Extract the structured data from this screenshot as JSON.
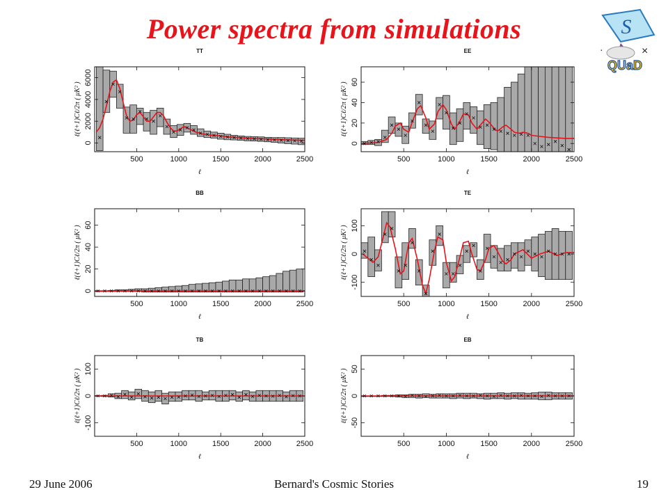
{
  "slide": {
    "title": "Power spectra from simulations",
    "footer_date": "29 June 2006",
    "footer_center": "Bernard's Cosmic Stories",
    "page_number": "19"
  },
  "logo": {
    "text": "QUaD",
    "glyph": "S",
    "symbol_left": "·",
    "symbol_right": "×"
  },
  "colors": {
    "title": "#e8141b",
    "model_curve": "#e8141b",
    "error_box": "#a9a9a9",
    "box_edge": "#222222"
  },
  "chart_data": [
    {
      "type": "line",
      "title": "TT",
      "xlabel": "ℓ",
      "ylabel": "ℓ(ℓ+1)Cℓ/2π ( μK² )",
      "xlim": [
        0,
        2500
      ],
      "ylim": [
        -800,
        7000
      ],
      "xticks": [
        500,
        1000,
        1500,
        2000,
        2500
      ],
      "yticks": [
        0,
        2000,
        4000,
        6000
      ],
      "series": [
        {
          "x": [
            20,
            60,
            100,
            140,
            180,
            220,
            260,
            300,
            340,
            380,
            420,
            460,
            500,
            540,
            580,
            620,
            660,
            700,
            740,
            780,
            820,
            860,
            900,
            940,
            980,
            1020,
            1060,
            1100,
            1150,
            1200,
            1300,
            1400,
            1500,
            1600,
            1700,
            1800,
            1900,
            2000,
            2100,
            2200,
            2300,
            2400,
            2500
          ],
          "y": [
            1000,
            1400,
            2200,
            3400,
            4700,
            5600,
            5800,
            5000,
            3700,
            2500,
            2000,
            2100,
            2600,
            2800,
            2400,
            2000,
            2000,
            2400,
            2800,
            2800,
            2500,
            1900,
            1400,
            1100,
            1100,
            1300,
            1500,
            1400,
            1200,
            1000,
            800,
            700,
            650,
            550,
            500,
            450,
            400,
            380,
            340,
            310,
            280,
            260,
            240
          ]
        }
      ],
      "points": {
        "x": [
          60,
          140,
          220,
          300,
          380,
          460,
          540,
          620,
          700,
          780,
          860,
          940,
          1020,
          1100,
          1180,
          1260,
          1340,
          1420,
          1500,
          1580,
          1660,
          1740,
          1820,
          1900,
          1980,
          2060,
          2140,
          2220,
          2300,
          2380,
          2460
        ],
        "y": [
          500,
          3800,
          5400,
          4700,
          2300,
          2200,
          2900,
          2200,
          2000,
          2500,
          1500,
          1000,
          1200,
          1400,
          1200,
          900,
          800,
          700,
          600,
          550,
          500,
          450,
          400,
          380,
          340,
          300,
          280,
          250,
          220,
          200,
          180
        ],
        "lower": [
          -700,
          2800,
          4200,
          3200,
          900,
          900,
          1700,
          1100,
          800,
          1500,
          800,
          500,
          700,
          1000,
          800,
          600,
          500,
          450,
          350,
          300,
          280,
          250,
          200,
          180,
          150,
          110,
          60,
          0,
          -60,
          -100,
          -150
        ],
        "upper": [
          7000,
          6700,
          6600,
          5400,
          3300,
          3500,
          3200,
          2800,
          3000,
          3200,
          2200,
          1600,
          1700,
          1800,
          1600,
          1300,
          1100,
          1000,
          900,
          800,
          700,
          650,
          600,
          580,
          560,
          520,
          500,
          500,
          480,
          460,
          440
        ]
      }
    },
    {
      "type": "line",
      "title": "EE",
      "xlabel": "ℓ",
      "ylabel": "ℓ(ℓ+1)Cℓ/2π ( μK² )",
      "xlim": [
        0,
        2500
      ],
      "ylim": [
        -8,
        75
      ],
      "xticks": [
        500,
        1000,
        1500,
        2000,
        2500
      ],
      "yticks": [
        0,
        20,
        40,
        60
      ],
      "series": [
        {
          "x": [
            20,
            100,
            200,
            300,
            360,
            400,
            460,
            500,
            560,
            600,
            660,
            700,
            760,
            800,
            860,
            900,
            960,
            1000,
            1060,
            1100,
            1160,
            1200,
            1260,
            1300,
            1360,
            1400,
            1460,
            1500,
            1560,
            1600,
            1660,
            1700,
            1760,
            1800,
            1860,
            1900,
            1960,
            2000,
            2100,
            2200,
            2300,
            2400,
            2500
          ],
          "y": [
            0,
            0.5,
            1,
            4,
            10,
            17,
            20,
            14,
            11,
            21,
            34,
            37,
            25,
            14,
            19,
            31,
            38,
            33,
            19,
            14,
            22,
            29,
            28,
            20,
            14,
            18,
            24,
            21,
            15,
            12,
            16,
            18,
            14,
            11,
            10,
            11,
            10,
            8,
            7,
            6,
            5.5,
            5,
            5
          ]
        }
      ],
      "points": {
        "x": [
          40,
          120,
          200,
          280,
          360,
          440,
          520,
          600,
          680,
          760,
          840,
          920,
          1000,
          1080,
          1160,
          1240,
          1320,
          1400,
          1480,
          1560,
          1640,
          1720,
          1800,
          1880,
          1960,
          2040,
          2120,
          2200,
          2280,
          2360,
          2440
        ],
        "y": [
          0,
          1,
          2,
          6,
          18,
          14,
          8,
          22,
          40,
          18,
          12,
          38,
          30,
          15,
          20,
          29,
          25,
          16,
          18,
          14,
          12,
          10,
          8,
          9,
          8,
          0,
          -3,
          -1,
          2,
          -2,
          -6
        ],
        "lower": [
          -1,
          -1,
          -2,
          1,
          10,
          7,
          0,
          15,
          28,
          10,
          4,
          24,
          14,
          -1,
          2,
          14,
          10,
          -1,
          -5,
          -6,
          -8,
          -8,
          -8,
          -8,
          -8,
          -8,
          -8,
          -8,
          -8,
          -8,
          -8
        ],
        "upper": [
          2,
          3,
          4,
          13,
          26,
          20,
          17,
          30,
          48,
          24,
          22,
          45,
          47,
          30,
          34,
          40,
          36,
          32,
          38,
          40,
          45,
          55,
          60,
          68,
          75,
          75,
          75,
          75,
          75,
          75,
          75
        ]
      }
    },
    {
      "type": "line",
      "title": "BB",
      "xlabel": "ℓ",
      "ylabel": "ℓ(ℓ+1)Cℓ/2π ( μK² )",
      "xlim": [
        0,
        2500
      ],
      "ylim": [
        -5,
        75
      ],
      "xticks": [
        500,
        1000,
        1500,
        2000,
        2500
      ],
      "yticks": [
        0,
        20,
        40,
        60
      ],
      "series": [
        {
          "x": [
            0,
            2500
          ],
          "y": [
            0,
            0
          ]
        }
      ],
      "points": {
        "x": [
          40,
          120,
          200,
          280,
          360,
          440,
          520,
          600,
          680,
          760,
          840,
          920,
          1000,
          1080,
          1160,
          1240,
          1320,
          1400,
          1480,
          1560,
          1640,
          1720,
          1800,
          1880,
          1960,
          2040,
          2120,
          2200,
          2280,
          2360,
          2440
        ],
        "y": [
          0,
          0,
          0,
          0,
          0,
          0,
          0,
          0,
          0,
          0,
          0,
          0,
          0,
          0,
          0,
          0,
          0,
          0,
          0,
          0,
          0,
          0,
          0,
          0,
          0,
          0,
          0,
          0,
          0,
          0,
          0
        ],
        "lower": [
          0,
          0,
          -0.5,
          -0.5,
          -0.5,
          -0.5,
          -0.5,
          -1,
          -1,
          -1,
          -1,
          -1,
          -1,
          -1,
          -1,
          -1,
          -1,
          -1,
          -1,
          -1,
          -1,
          -1,
          -1,
          -1,
          -1,
          -1,
          -1,
          -1,
          -1,
          -1,
          -1
        ],
        "upper": [
          0,
          0,
          0.5,
          1,
          1,
          1.5,
          2,
          2,
          2.5,
          3,
          3.5,
          4,
          4.5,
          5,
          6,
          6.5,
          7,
          7.5,
          8,
          9,
          10,
          10,
          11,
          11,
          12,
          13,
          14,
          16,
          18,
          19,
          20
        ]
      }
    },
    {
      "type": "line",
      "title": "TE",
      "xlabel": "ℓ",
      "ylabel": "ℓ(ℓ+1)Cℓ/2π ( μK² )",
      "xlim": [
        0,
        2500
      ],
      "ylim": [
        -150,
        160
      ],
      "xticks": [
        500,
        1000,
        1500,
        2000,
        2500
      ],
      "yticks": [
        -100,
        0,
        100
      ],
      "series": [
        {
          "x": [
            20,
            80,
            140,
            200,
            260,
            300,
            340,
            400,
            460,
            500,
            560,
            600,
            660,
            720,
            760,
            800,
            860,
            900,
            960,
            1000,
            1060,
            1100,
            1160,
            1200,
            1260,
            1300,
            1360,
            1400,
            1460,
            1500,
            1560,
            1600,
            1660,
            1700,
            1760,
            1800,
            1900,
            2000,
            2100,
            2200,
            2300,
            2400,
            2500
          ],
          "y": [
            0,
            -15,
            -30,
            -10,
            60,
            110,
            95,
            20,
            -70,
            -60,
            40,
            55,
            -20,
            -110,
            -140,
            -90,
            10,
            60,
            50,
            -30,
            -95,
            -80,
            -10,
            40,
            45,
            0,
            -55,
            -60,
            -20,
            20,
            30,
            10,
            -25,
            -35,
            -20,
            0,
            15,
            -15,
            0,
            10,
            -5,
            5,
            5
          ]
        }
      ],
      "points": {
        "x": [
          40,
          120,
          200,
          280,
          360,
          440,
          520,
          600,
          680,
          760,
          840,
          920,
          1000,
          1080,
          1160,
          1240,
          1320,
          1400,
          1480,
          1560,
          1640,
          1720,
          1800,
          1880,
          1960,
          2040,
          2120,
          2200,
          2280,
          2360,
          2440
        ],
        "y": [
          10,
          -20,
          -40,
          70,
          90,
          -60,
          -40,
          40,
          -60,
          -140,
          10,
          70,
          -70,
          -70,
          -40,
          10,
          30,
          -60,
          20,
          -10,
          -30,
          -20,
          0,
          -10,
          10,
          0,
          -10,
          10,
          0,
          0,
          0
        ],
        "lower": [
          -15,
          -80,
          -60,
          40,
          60,
          -120,
          -90,
          20,
          -110,
          -150,
          -40,
          30,
          -120,
          -100,
          -70,
          -30,
          -10,
          -90,
          -30,
          -50,
          -60,
          -60,
          -50,
          -60,
          -40,
          -60,
          -80,
          -90,
          -90,
          -90,
          -90
        ],
        "upper": [
          40,
          60,
          15,
          150,
          150,
          -10,
          40,
          90,
          -20,
          -110,
          50,
          100,
          -30,
          -30,
          -5,
          30,
          40,
          -20,
          70,
          30,
          20,
          30,
          40,
          40,
          50,
          60,
          70,
          80,
          90,
          80,
          80
        ]
      }
    },
    {
      "type": "line",
      "title": "TB",
      "xlabel": "ℓ",
      "ylabel": "ℓ(ℓ+1)Cℓ/2π ( μK² )",
      "xlim": [
        0,
        2500
      ],
      "ylim": [
        -150,
        150
      ],
      "xticks": [
        500,
        1000,
        1500,
        2000,
        2500
      ],
      "yticks": [
        -100,
        0,
        100
      ],
      "series": [
        {
          "x": [
            0,
            2500
          ],
          "y": [
            0,
            0
          ]
        }
      ],
      "points": {
        "x": [
          40,
          120,
          200,
          280,
          360,
          440,
          520,
          600,
          680,
          760,
          840,
          920,
          1000,
          1080,
          1160,
          1240,
          1320,
          1400,
          1480,
          1560,
          1640,
          1720,
          1800,
          1880,
          1960,
          2040,
          2120,
          2200,
          2280,
          2360,
          2440
        ],
        "y": [
          0,
          0,
          2,
          -3,
          6,
          -5,
          8,
          -3,
          -8,
          -5,
          -10,
          -5,
          -4,
          0,
          3,
          -2,
          0,
          2,
          -2,
          2,
          5,
          -5,
          5,
          -2,
          2,
          0,
          -1,
          2,
          -3,
          1,
          0
        ],
        "lower": [
          -1,
          -2,
          -4,
          -10,
          -10,
          -15,
          -10,
          -20,
          -25,
          -20,
          -30,
          -20,
          -20,
          -15,
          -15,
          -20,
          -15,
          -15,
          -20,
          -20,
          -15,
          -20,
          -15,
          -20,
          -20,
          -20,
          -20,
          -20,
          -20,
          -20,
          -20
        ],
        "upper": [
          1,
          2,
          8,
          10,
          20,
          15,
          25,
          20,
          15,
          20,
          10,
          15,
          15,
          20,
          20,
          20,
          15,
          20,
          20,
          20,
          20,
          15,
          20,
          15,
          20,
          20,
          20,
          20,
          15,
          20,
          20
        ]
      }
    },
    {
      "type": "line",
      "title": "EB",
      "xlabel": "ℓ",
      "ylabel": "ℓ(ℓ+1)Cℓ/2π ( μK² )",
      "xlim": [
        0,
        2500
      ],
      "ylim": [
        -75,
        75
      ],
      "xticks": [
        500,
        1000,
        1500,
        2000,
        2500
      ],
      "yticks": [
        -50,
        0,
        50
      ],
      "series": [
        {
          "x": [
            0,
            2500
          ],
          "y": [
            0,
            0
          ]
        }
      ],
      "points": {
        "x": [
          40,
          120,
          200,
          280,
          360,
          440,
          520,
          600,
          680,
          760,
          840,
          920,
          1000,
          1080,
          1160,
          1240,
          1320,
          1400,
          1480,
          1560,
          1640,
          1720,
          1800,
          1880,
          1960,
          2040,
          2120,
          2200,
          2280,
          2360,
          2440
        ],
        "y": [
          0,
          0,
          0,
          0,
          0,
          0,
          -1,
          1,
          0,
          -1,
          0,
          1,
          0,
          0,
          1,
          0,
          0,
          1,
          0,
          -1,
          1,
          0,
          0,
          1,
          0,
          0,
          -1,
          1,
          0,
          0,
          0
        ],
        "lower": [
          0,
          0,
          0,
          -1,
          -1,
          -2,
          -3,
          -3,
          -4,
          -3,
          -4,
          -4,
          -4,
          -5,
          -4,
          -5,
          -4,
          -5,
          -6,
          -5,
          -5,
          -6,
          -5,
          -6,
          -6,
          -6,
          -7,
          -7,
          -6,
          -6,
          -6
        ],
        "upper": [
          0,
          0,
          0,
          1,
          1,
          2,
          2,
          3,
          3,
          4,
          3,
          4,
          4,
          4,
          5,
          5,
          5,
          4,
          5,
          5,
          6,
          5,
          6,
          6,
          5,
          6,
          7,
          7,
          6,
          6,
          6
        ]
      }
    }
  ]
}
